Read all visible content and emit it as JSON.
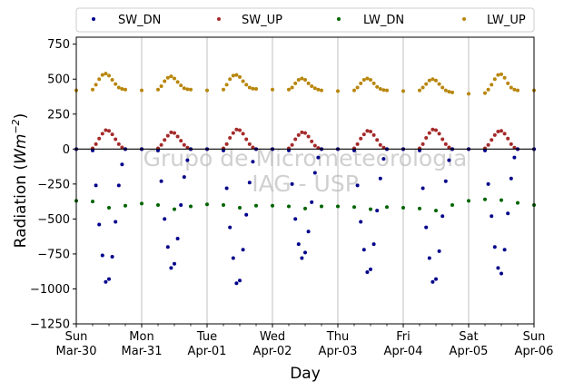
{
  "chart_data": {
    "type": "scatter",
    "xlabel": "Day",
    "ylabel_main": "Radiation (",
    "ylabel_unit": "Wm",
    "ylabel_exp": "−2",
    "ylabel_close": ")",
    "ylim": [
      -1250,
      800
    ],
    "xlim": [
      0,
      7
    ],
    "yticks": [
      750,
      500,
      250,
      0,
      -250,
      -500,
      -750,
      -1000,
      -1250
    ],
    "ytick_labels": [
      "750",
      "500",
      "250",
      "0",
      "−250",
      "−500",
      "−750",
      "−1000",
      "−1250"
    ],
    "xticks": [
      {
        "x": 0,
        "line1": "Sun",
        "line2": "Mar-30"
      },
      {
        "x": 1,
        "line1": "Mon",
        "line2": "Mar-31"
      },
      {
        "x": 2,
        "line1": "Tue",
        "line2": "Apr-01"
      },
      {
        "x": 3,
        "line1": "Wed",
        "line2": "Apr-02"
      },
      {
        "x": 4,
        "line1": "Thu",
        "line2": "Apr-03"
      },
      {
        "x": 5,
        "line1": "Fri",
        "line2": "Apr-04"
      },
      {
        "x": 6,
        "line1": "Sat",
        "line2": "Apr-05"
      },
      {
        "x": 7,
        "line1": "Sun",
        "line2": "Apr-06"
      }
    ],
    "grid": "vertical",
    "legend_position": "top",
    "watermark": [
      "Grupo de Micrometeorologia",
      "IAG - USP"
    ],
    "series": [
      {
        "name": "SW_DN",
        "color": "#00008b",
        "x": [
          0.0,
          0.25,
          0.3,
          0.35,
          0.4,
          0.45,
          0.5,
          0.55,
          0.6,
          0.65,
          0.7,
          0.75,
          1.0,
          1.25,
          1.3,
          1.35,
          1.4,
          1.45,
          1.5,
          1.55,
          1.6,
          1.65,
          1.7,
          1.75,
          2.0,
          2.25,
          2.3,
          2.35,
          2.4,
          2.45,
          2.5,
          2.55,
          2.6,
          2.65,
          2.7,
          2.75,
          3.0,
          3.25,
          3.3,
          3.35,
          3.4,
          3.45,
          3.5,
          3.55,
          3.6,
          3.65,
          3.7,
          3.75,
          4.0,
          4.25,
          4.3,
          4.35,
          4.4,
          4.45,
          4.5,
          4.55,
          4.6,
          4.65,
          4.7,
          4.75,
          5.0,
          5.25,
          5.3,
          5.35,
          5.4,
          5.45,
          5.5,
          5.55,
          5.6,
          5.65,
          5.7,
          5.75,
          6.0,
          6.25,
          6.3,
          6.35,
          6.4,
          6.45,
          6.5,
          6.55,
          6.6,
          6.65,
          6.7,
          6.75,
          7.0
        ],
        "y": [
          0,
          -10,
          -260,
          -540,
          -760,
          -950,
          -930,
          -770,
          -520,
          -260,
          -110,
          0,
          0,
          -10,
          -230,
          -500,
          -700,
          -850,
          -820,
          -640,
          -400,
          -200,
          -80,
          0,
          0,
          -10,
          -280,
          -560,
          -780,
          -960,
          -940,
          -720,
          -470,
          -240,
          -90,
          0,
          0,
          -10,
          -250,
          -500,
          -680,
          -780,
          -740,
          -590,
          -380,
          -170,
          -60,
          0,
          0,
          -10,
          -260,
          -520,
          -720,
          -880,
          -860,
          -680,
          -440,
          -210,
          -70,
          0,
          0,
          -10,
          -280,
          -560,
          -780,
          -950,
          -930,
          -730,
          -480,
          -230,
          -80,
          0,
          0,
          -10,
          -250,
          -480,
          -700,
          -850,
          -890,
          -720,
          -460,
          -210,
          -60,
          0,
          0
        ]
      },
      {
        "name": "SW_UP",
        "color": "#a52a2a",
        "x": [
          0.0,
          0.25,
          0.3,
          0.35,
          0.4,
          0.45,
          0.5,
          0.55,
          0.6,
          0.65,
          0.7,
          0.75,
          1.0,
          1.25,
          1.3,
          1.35,
          1.4,
          1.45,
          1.5,
          1.55,
          1.6,
          1.65,
          1.7,
          1.75,
          2.0,
          2.25,
          2.3,
          2.35,
          2.4,
          2.45,
          2.5,
          2.55,
          2.6,
          2.65,
          2.7,
          2.75,
          3.0,
          3.25,
          3.3,
          3.35,
          3.4,
          3.45,
          3.5,
          3.55,
          3.6,
          3.65,
          3.7,
          3.75,
          4.0,
          4.25,
          4.3,
          4.35,
          4.4,
          4.45,
          4.5,
          4.55,
          4.6,
          4.65,
          4.7,
          4.75,
          5.0,
          5.25,
          5.3,
          5.35,
          5.4,
          5.45,
          5.5,
          5.55,
          5.6,
          5.65,
          5.7,
          5.75,
          6.0,
          6.25,
          6.3,
          6.35,
          6.4,
          6.45,
          6.5,
          6.55,
          6.6,
          6.65,
          6.7,
          6.75,
          7.0
        ],
        "y": [
          0,
          5,
          35,
          75,
          110,
          135,
          130,
          105,
          70,
          35,
          12,
          0,
          0,
          5,
          30,
          65,
          95,
          120,
          115,
          90,
          60,
          30,
          10,
          0,
          0,
          5,
          35,
          80,
          115,
          140,
          135,
          110,
          70,
          35,
          12,
          0,
          0,
          5,
          30,
          70,
          100,
          120,
          115,
          90,
          55,
          25,
          8,
          0,
          0,
          5,
          35,
          75,
          105,
          130,
          125,
          100,
          65,
          30,
          10,
          0,
          0,
          5,
          35,
          80,
          115,
          140,
          135,
          110,
          70,
          35,
          12,
          0,
          0,
          5,
          30,
          65,
          100,
          125,
          130,
          110,
          75,
          35,
          10,
          0,
          0
        ]
      },
      {
        "name": "LW_DN",
        "color": "#006400",
        "x": [
          0.0,
          0.25,
          0.5,
          0.75,
          1.0,
          1.25,
          1.5,
          1.75,
          2.0,
          2.25,
          2.5,
          2.75,
          3.0,
          3.25,
          3.5,
          3.75,
          4.0,
          4.25,
          4.5,
          4.75,
          5.0,
          5.25,
          5.5,
          5.75,
          6.0,
          6.25,
          6.5,
          6.75,
          7.0
        ],
        "y": [
          -370,
          -375,
          -420,
          -405,
          -390,
          -400,
          -430,
          -410,
          -395,
          -400,
          -420,
          -405,
          -405,
          -410,
          -425,
          -410,
          -410,
          -415,
          -430,
          -415,
          -420,
          -425,
          -440,
          -400,
          -370,
          -360,
          -365,
          -385,
          -400
        ]
      },
      {
        "name": "LW_UP",
        "color": "#b8860b",
        "x": [
          0.0,
          0.25,
          0.3,
          0.35,
          0.4,
          0.45,
          0.5,
          0.55,
          0.6,
          0.65,
          0.7,
          0.75,
          1.0,
          1.25,
          1.3,
          1.35,
          1.4,
          1.45,
          1.5,
          1.55,
          1.6,
          1.65,
          1.7,
          1.75,
          2.0,
          2.25,
          2.3,
          2.35,
          2.4,
          2.45,
          2.5,
          2.55,
          2.6,
          2.65,
          2.7,
          2.75,
          3.0,
          3.25,
          3.3,
          3.35,
          3.4,
          3.45,
          3.5,
          3.55,
          3.6,
          3.65,
          3.7,
          3.75,
          4.0,
          4.25,
          4.3,
          4.35,
          4.4,
          4.45,
          4.5,
          4.55,
          4.6,
          4.65,
          4.7,
          4.75,
          5.0,
          5.25,
          5.3,
          5.35,
          5.4,
          5.45,
          5.5,
          5.55,
          5.6,
          5.65,
          5.7,
          5.75,
          6.0,
          6.25,
          6.3,
          6.35,
          6.4,
          6.45,
          6.5,
          6.55,
          6.6,
          6.65,
          6.7,
          6.75,
          7.0
        ],
        "y": [
          420,
          425,
          460,
          500,
          530,
          540,
          525,
          495,
          465,
          440,
          430,
          425,
          420,
          425,
          450,
          485,
          510,
          520,
          505,
          480,
          455,
          435,
          428,
          425,
          420,
          425,
          460,
          500,
          525,
          530,
          515,
          485,
          460,
          440,
          432,
          430,
          425,
          425,
          440,
          470,
          495,
          505,
          495,
          470,
          450,
          435,
          425,
          420,
          415,
          420,
          440,
          470,
          495,
          505,
          495,
          470,
          445,
          430,
          422,
          420,
          415,
          420,
          440,
          465,
          490,
          500,
          490,
          465,
          440,
          420,
          410,
          405,
          395,
          400,
          425,
          460,
          500,
          530,
          535,
          510,
          470,
          440,
          425,
          420,
          420
        ]
      }
    ]
  }
}
